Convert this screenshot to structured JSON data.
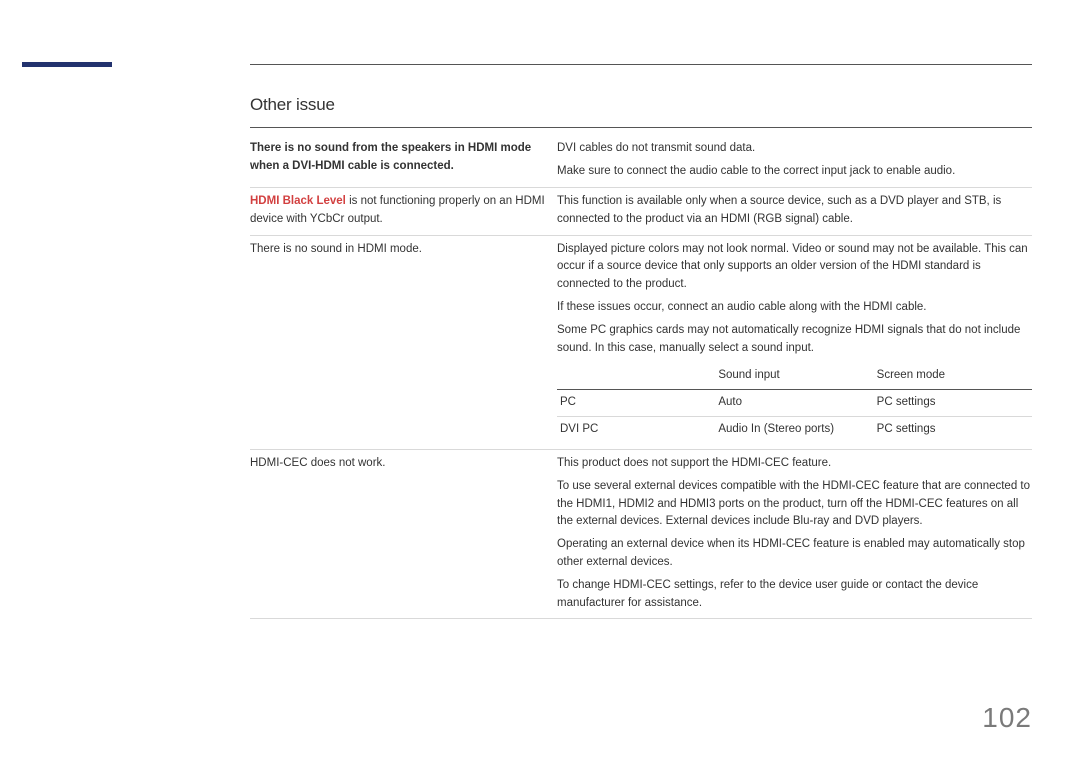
{
  "colors": {
    "accent": "#22326e",
    "highlight": "#d24040",
    "text": "#333333",
    "rule_dark": "#555555",
    "rule_light": "#d9d9d9",
    "page_number": "#7a7a7a"
  },
  "section_title": "Other issue",
  "page_number": "102",
  "rows": [
    {
      "issue_bold": "There is no sound from the speakers in HDMI mode when a DVI-HDMI cable is connected.",
      "paragraphs": [
        "DVI cables do not transmit sound data.",
        "Make sure to connect the audio cable to the correct input jack to enable audio."
      ]
    },
    {
      "issue_highlight": "HDMI Black Level",
      "issue_cont": " is not functioning properly on an HDMI device with YCbCr output.",
      "paragraphs": [
        "This function is available only when a source device, such as a DVD player and STB, is connected to the product via an HDMI (RGB signal) cable."
      ]
    },
    {
      "issue_plain": "There is no sound in HDMI mode.",
      "paragraphs": [
        "Displayed picture colors may not look normal. Video or sound may not be available. This can occur if a source device that only supports an older version of the HDMI standard is connected to the product.",
        "If these issues occur, connect an audio cable along with the HDMI cable.",
        "Some PC graphics cards may not automatically recognize HDMI signals that do not include sound. In this case, manually select a sound input."
      ],
      "table": {
        "headers": [
          "",
          "Sound input",
          "Screen mode"
        ],
        "rows": [
          [
            "PC",
            "Auto",
            "PC settings"
          ],
          [
            "DVI PC",
            "Audio In (Stereo ports)",
            "PC settings"
          ]
        ]
      }
    },
    {
      "issue_plain": "HDMI-CEC does not work.",
      "paragraphs": [
        "This product does not support the HDMI-CEC feature.",
        "To use several external devices compatible with the HDMI-CEC feature that are connected to the HDMI1, HDMI2 and HDMI3 ports on the product, turn off the HDMI-CEC features on all the external devices. External devices include Blu-ray and DVD players.",
        "Operating an external device when its HDMI-CEC feature is enabled may automatically stop other external devices.",
        "To change HDMI-CEC settings, refer to the device user guide or contact the device manufacturer for assistance."
      ]
    }
  ]
}
